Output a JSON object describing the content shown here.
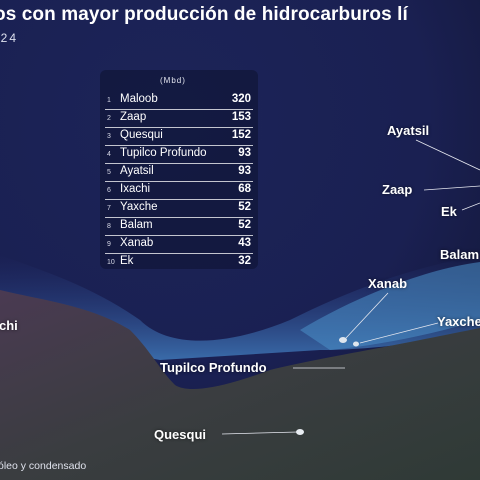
{
  "title": "os con mayor producción de hidrocarburos lí",
  "subtitle": "024",
  "footnote": "óleo y condensado",
  "table": {
    "unit": "(Mbd)",
    "rows": [
      {
        "rank": "1",
        "name": "Maloob",
        "value": "320"
      },
      {
        "rank": "2",
        "name": "Zaap",
        "value": "153"
      },
      {
        "rank": "3",
        "name": "Quesqui",
        "value": "152"
      },
      {
        "rank": "4",
        "name": "Tupilco Profundo",
        "value": "93"
      },
      {
        "rank": "5",
        "name": "Ayatsil",
        "value": "93"
      },
      {
        "rank": "6",
        "name": "Ixachi",
        "value": "68"
      },
      {
        "rank": "7",
        "name": "Yaxche",
        "value": "52"
      },
      {
        "rank": "8",
        "name": "Balam",
        "value": "52"
      },
      {
        "rank": "9",
        "name": "Xanab",
        "value": "43"
      },
      {
        "rank": "10",
        "name": "Ek",
        "value": "32"
      }
    ]
  },
  "map_labels": {
    "ayatsil": "Ayatsil",
    "zaap": "Zaap",
    "ek": "Ek",
    "balam": "Balam",
    "xanab": "Xanab",
    "yaxche": "Yaxche",
    "ixachi": "chi",
    "tupilco": "Tupilco Profundo",
    "quesqui": "Quesqui"
  },
  "colors": {
    "ocean_deep": "#1a1f52",
    "ocean_shelf": "#3a6fb0",
    "land": "#3e3a45",
    "label": "#ffffff"
  }
}
